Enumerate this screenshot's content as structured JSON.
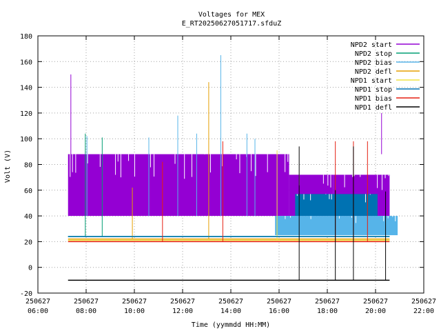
{
  "chart_data": {
    "type": "line",
    "title": "Voltages for MEX",
    "subtitle": "E_RT20250627051717.sfduZ",
    "xlabel": "Time (yymmdd HH:MM)",
    "ylabel": "Volt (V)",
    "ylim": [
      -20,
      180
    ],
    "yticks": [
      -20,
      0,
      20,
      40,
      60,
      80,
      100,
      120,
      140,
      160,
      180
    ],
    "xlim": [
      "2025-06-27 06:00",
      "2025-06-27 22:00"
    ],
    "xticks": [
      {
        "t": "2025-06-27 06:00",
        "date": "250627",
        "time": "06:00"
      },
      {
        "t": "2025-06-27 08:00",
        "date": "250627",
        "time": "08:00"
      },
      {
        "t": "2025-06-27 10:00",
        "date": "250627",
        "time": "10:00"
      },
      {
        "t": "2025-06-27 12:00",
        "date": "250627",
        "time": "12:00"
      },
      {
        "t": "2025-06-27 14:00",
        "date": "250627",
        "time": "14:00"
      },
      {
        "t": "2025-06-27 16:00",
        "date": "250627",
        "time": "16:00"
      },
      {
        "t": "2025-06-27 18:00",
        "date": "250627",
        "time": "18:00"
      },
      {
        "t": "2025-06-27 20:00",
        "date": "250627",
        "time": "20:00"
      },
      {
        "t": "2025-06-27 22:00",
        "date": "250627",
        "time": "22:00"
      }
    ],
    "grid": true,
    "legend_position": "top-right",
    "series": [
      {
        "name": "NPD2 start",
        "color": "#9400d3",
        "bands": [
          {
            "x0": "2025-06-27 07:15",
            "x1": "2025-06-27 16:25",
            "low": 40,
            "high": 88
          },
          {
            "x0": "2025-06-27 16:25",
            "x1": "2025-06-27 18:15",
            "low": 40,
            "high": 72
          },
          {
            "x0": "2025-06-27 18:15",
            "x1": "2025-06-27 20:35",
            "low": 40,
            "high": 72
          }
        ],
        "spikes": [
          {
            "x": "2025-06-27 07:22",
            "y": 150
          },
          {
            "x": "2025-06-27 20:15",
            "y": 120
          }
        ]
      },
      {
        "name": "NPD2 stop",
        "color": "#009e73",
        "baseline": 24,
        "spikes": [
          {
            "x": "2025-06-27 07:58",
            "y": 104
          },
          {
            "x": "2025-06-27 08:40",
            "y": 101
          }
        ]
      },
      {
        "name": "NPD2 bias",
        "color": "#56b4e9",
        "bands": [
          {
            "x0": "2025-06-27 15:50",
            "x1": "2025-06-27 20:55",
            "low": 25,
            "high": 40
          }
        ],
        "spikes": [
          {
            "x": "2025-06-27 08:02",
            "y": 102
          },
          {
            "x": "2025-06-27 10:36",
            "y": 101
          },
          {
            "x": "2025-06-27 11:48",
            "y": 118
          },
          {
            "x": "2025-06-27 12:35",
            "y": 104
          },
          {
            "x": "2025-06-27 13:35",
            "y": 165
          },
          {
            "x": "2025-06-27 14:40",
            "y": 104
          },
          {
            "x": "2025-06-27 15:00",
            "y": 100
          }
        ]
      },
      {
        "name": "NPD2 defl",
        "color": "#e69f00",
        "baseline": 22,
        "spikes": [
          {
            "x": "2025-06-27 09:55",
            "y": 62
          },
          {
            "x": "2025-06-27 13:05",
            "y": 144
          }
        ]
      },
      {
        "name": "NPD1 start",
        "color": "#f0e442",
        "baseline": 21,
        "spikes": [
          {
            "x": "2025-06-27 15:55",
            "y": 91
          }
        ]
      },
      {
        "name": "NPD1 stop",
        "color": "#0072b2",
        "baseline": 24,
        "bands": [
          {
            "x0": "2025-06-27 16:40",
            "x1": "2025-06-27 20:05",
            "low": 40,
            "high": 57
          }
        ]
      },
      {
        "name": "NPD1 bias",
        "color": "#e51e10",
        "baseline": 20,
        "spikes": [
          {
            "x": "2025-06-27 11:10",
            "y": 82
          },
          {
            "x": "2025-06-27 13:40",
            "y": 98
          },
          {
            "x": "2025-06-27 18:20",
            "y": 98
          },
          {
            "x": "2025-06-27 19:05",
            "y": 98
          },
          {
            "x": "2025-06-27 19:40",
            "y": 98
          }
        ]
      },
      {
        "name": "NPD1 defl",
        "color": "#000000",
        "baseline": -10,
        "spikes": [
          {
            "x": "2025-06-27 16:50",
            "y": 94
          },
          {
            "x": "2025-06-27 18:20",
            "y": 60
          },
          {
            "x": "2025-06-27 19:05",
            "y": 94
          },
          {
            "x": "2025-06-27 20:25",
            "y": 59
          }
        ]
      }
    ]
  }
}
